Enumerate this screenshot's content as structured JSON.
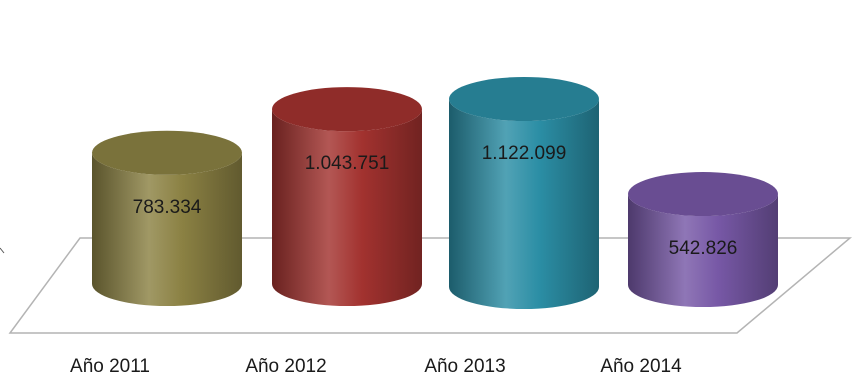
{
  "chart_data": {
    "type": "bar",
    "style": "3d-cylinder",
    "categories": [
      "Año 2011",
      "Año 2012",
      "Año 2013",
      "Año 2014"
    ],
    "values": [
      783334,
      1043751,
      1122099,
      542826
    ],
    "value_labels": [
      "783.334",
      "1.043.751",
      "1.122.099",
      "542.826"
    ],
    "colors": [
      "#8b8143",
      "#a2322f",
      "#2b8ea5",
      "#7758a6"
    ],
    "title": "",
    "xlabel": "",
    "ylabel": "",
    "ylim": [
      0,
      1200000
    ],
    "grid": false,
    "legend": "none"
  }
}
